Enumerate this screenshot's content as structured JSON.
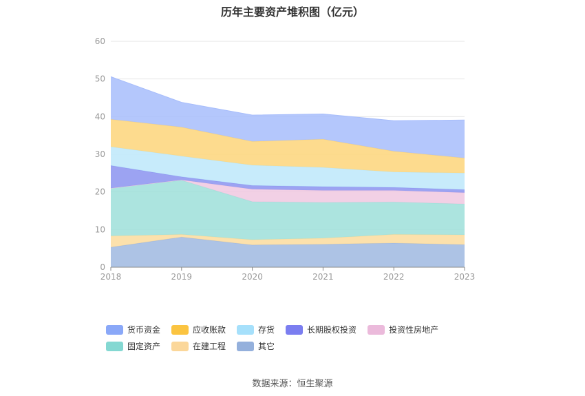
{
  "title": "历年主要资产堆积图（亿元）",
  "source": "数据来源：恒生聚源",
  "chart_data": {
    "type": "area",
    "stacked": true,
    "title": "历年主要资产堆积图（亿元）",
    "x": [
      "2018",
      "2019",
      "2020",
      "2021",
      "2022",
      "2023"
    ],
    "ylim": [
      0,
      60
    ],
    "yticks": [
      0,
      10,
      20,
      30,
      40,
      50,
      60
    ],
    "grid": true,
    "legend_position": "bottom",
    "series": [
      {
        "name": "其它",
        "color": "#9fb8e0",
        "values": [
          5.3,
          8.0,
          5.9,
          6.1,
          6.4,
          6.0
        ]
      },
      {
        "name": "在建工程",
        "color": "#fbdc9e",
        "values": [
          3.0,
          0.7,
          1.4,
          1.6,
          2.3,
          2.6
        ]
      },
      {
        "name": "固定资产",
        "color": "#9ddfd9",
        "values": [
          12.7,
          14.4,
          10.1,
          9.5,
          8.6,
          8.2
        ]
      },
      {
        "name": "投资性房地产",
        "color": "#f0c8e0",
        "values": [
          0.0,
          0.1,
          3.3,
          3.2,
          3.1,
          3.0
        ]
      },
      {
        "name": "长期股权投资",
        "color": "#8b93f0",
        "values": [
          6.0,
          0.8,
          1.0,
          1.0,
          0.8,
          0.8
        ]
      },
      {
        "name": "存货",
        "color": "#bde8fa",
        "values": [
          5.0,
          5.5,
          5.4,
          5.1,
          4.1,
          4.4
        ]
      },
      {
        "name": "应收账款",
        "color": "#fdd57a",
        "values": [
          7.3,
          7.7,
          6.3,
          7.5,
          5.5,
          4.0
        ]
      },
      {
        "name": "货币资金",
        "color": "#a7bdfb",
        "values": [
          11.3,
          6.6,
          7.0,
          6.7,
          8.1,
          10.1
        ]
      }
    ],
    "legend_order": [
      "货币资金",
      "应收账款",
      "存货",
      "长期股权投资",
      "投资性房地产",
      "固定资产",
      "在建工程",
      "其它"
    ],
    "legend_colors": {
      "货币资金": "#8aa8f8",
      "应收账款": "#fbc441",
      "存货": "#a6e0fb",
      "长期股权投资": "#7b7ef0",
      "投资性房地产": "#ebbadb",
      "固定资产": "#84d8d2",
      "在建工程": "#fbd79a",
      "其它": "#94b0dc"
    }
  }
}
